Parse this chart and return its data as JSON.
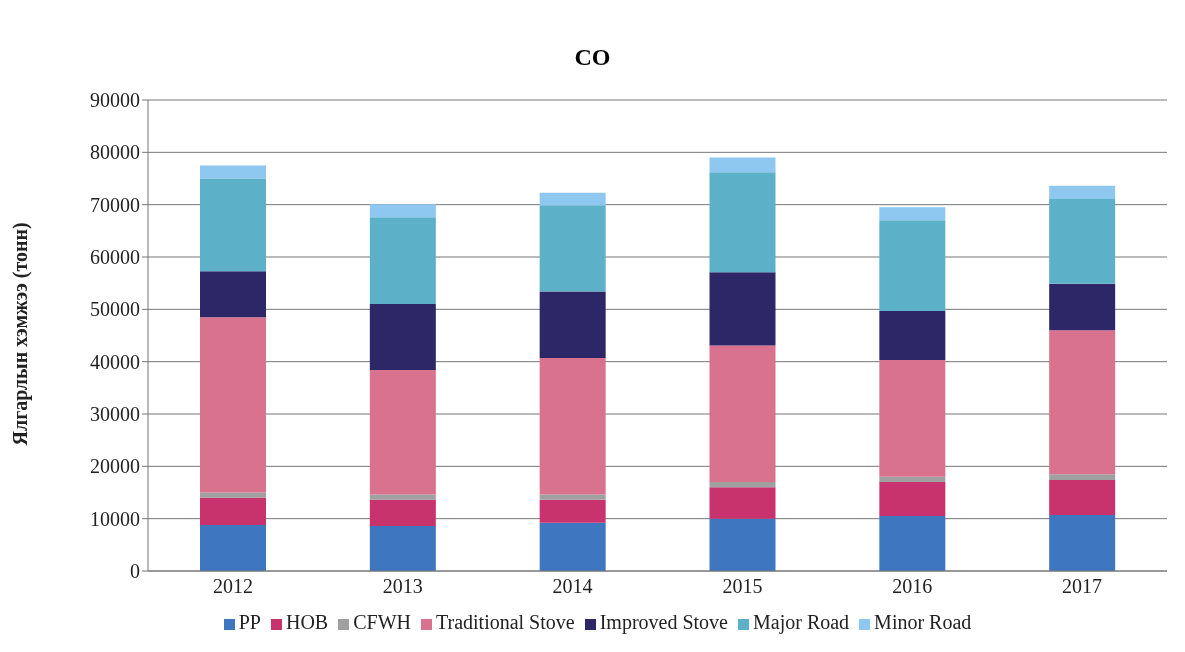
{
  "chart_data": {
    "type": "bar",
    "title": "CO",
    "ylabel": "Ялгарлын хэмжээ (тонн)",
    "stacked": true,
    "categories": [
      "2012",
      "2013",
      "2014",
      "2015",
      "2016",
      "2017"
    ],
    "series": [
      {
        "name": "PP",
        "color": "#3f76c0",
        "values": [
          8800,
          8600,
          9200,
          10000,
          10500,
          10700
        ]
      },
      {
        "name": "HOB",
        "color": "#c8336e",
        "values": [
          5200,
          5000,
          4400,
          6000,
          6500,
          6700
        ]
      },
      {
        "name": "CFWH",
        "color": "#a0a0a0",
        "values": [
          1000,
          1000,
          1000,
          1000,
          1000,
          1100
        ]
      },
      {
        "name": "Traditional Stove",
        "color": "#d9728f",
        "values": [
          33500,
          23800,
          26100,
          26100,
          22300,
          27500
        ]
      },
      {
        "name": "Improved Stove",
        "color": "#2e2767",
        "values": [
          8800,
          12600,
          12700,
          14000,
          9400,
          8900
        ]
      },
      {
        "name": "Major Road",
        "color": "#5cb0c8",
        "values": [
          17700,
          16600,
          16500,
          19100,
          17300,
          16200
        ]
      },
      {
        "name": "Minor Road",
        "color": "#8ec8f0",
        "values": [
          2500,
          2500,
          2400,
          2800,
          2500,
          2500
        ]
      }
    ],
    "ylim": [
      0,
      90000
    ],
    "yticks": [
      0,
      10000,
      20000,
      30000,
      40000,
      50000,
      60000,
      70000,
      80000,
      90000
    ],
    "grid": "y",
    "legend": "bottom"
  }
}
